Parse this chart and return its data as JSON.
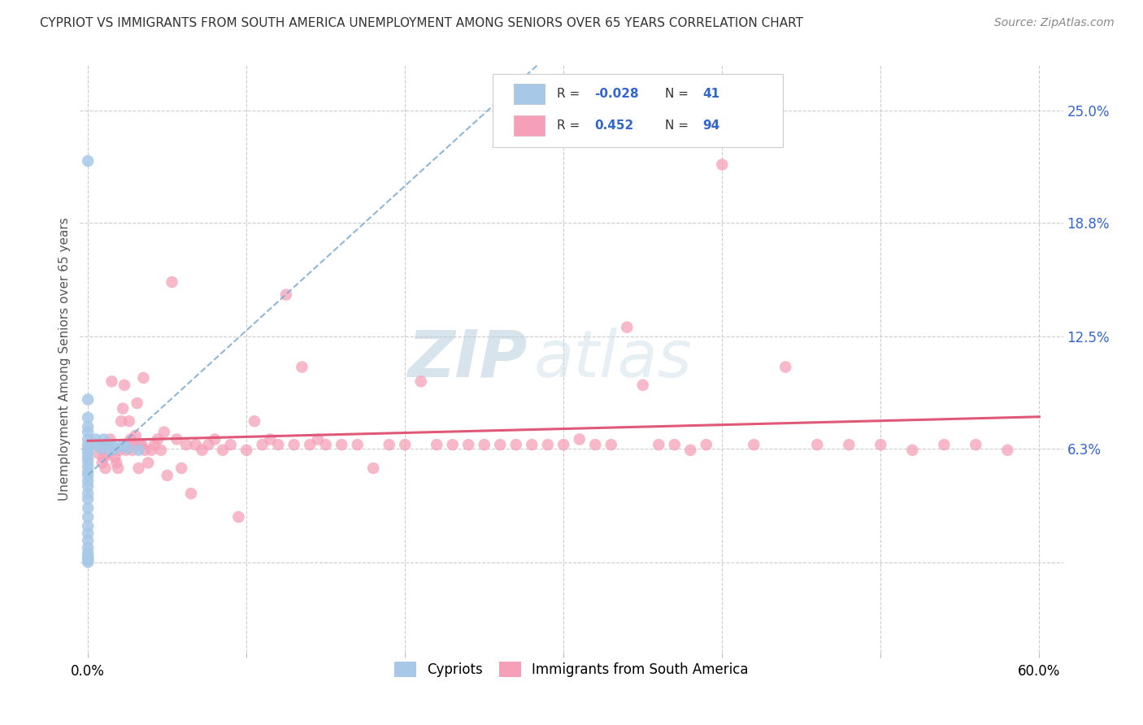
{
  "title": "CYPRIOT VS IMMIGRANTS FROM SOUTH AMERICA UNEMPLOYMENT AMONG SENIORS OVER 65 YEARS CORRELATION CHART",
  "source": "Source: ZipAtlas.com",
  "ylabel": "Unemployment Among Seniors over 65 years",
  "xlim": [
    -0.005,
    0.615
  ],
  "ylim": [
    -0.05,
    0.275
  ],
  "color_cypriot": "#a8c8e8",
  "color_sa": "#f5a0b8",
  "line_color_cypriot": "#7aaad0",
  "line_color_sa": "#e05878",
  "watermark_color": "#ccdde8",
  "background_color": "#ffffff",
  "title_fontsize": 11,
  "axis_fontsize": 12,
  "ylabel_fontsize": 11,
  "r_cyp": -0.028,
  "n_cyp": 41,
  "r_sa": 0.452,
  "n_sa": 94,
  "ytick_vals": [
    0.0,
    0.063,
    0.125,
    0.188,
    0.25
  ],
  "ytick_labels": [
    "",
    "6.3%",
    "12.5%",
    "18.8%",
    "25.0%"
  ],
  "xtick_vals": [
    0.0,
    0.1,
    0.2,
    0.3,
    0.4,
    0.5,
    0.6
  ],
  "xtick_labels": [
    "0.0%",
    "",
    "",
    "",
    "",
    "",
    "60.0%"
  ],
  "cypriot_x": [
    0.0,
    0.0,
    0.0,
    0.0,
    0.0,
    0.0,
    0.0,
    0.0,
    0.0,
    0.0,
    0.0,
    0.0,
    0.0,
    0.0,
    0.0,
    0.0,
    0.0,
    0.0,
    0.0,
    0.0,
    0.0,
    0.0,
    0.0,
    0.0,
    0.0,
    0.0,
    0.0,
    0.0,
    0.0,
    0.0,
    0.005,
    0.006,
    0.008,
    0.01,
    0.012,
    0.014,
    0.015,
    0.018,
    0.022,
    0.025,
    0.032
  ],
  "cypriot_y": [
    0.222,
    0.09,
    0.08,
    0.075,
    0.072,
    0.068,
    0.065,
    0.063,
    0.062,
    0.06,
    0.058,
    0.056,
    0.053,
    0.05,
    0.048,
    0.045,
    0.042,
    0.038,
    0.035,
    0.03,
    0.025,
    0.02,
    0.016,
    0.012,
    0.008,
    0.005,
    0.003,
    0.002,
    0.001,
    0.0,
    0.068,
    0.065,
    0.063,
    0.068,
    0.065,
    0.062,
    0.065,
    0.063,
    0.065,
    0.063,
    0.062
  ],
  "sa_x": [
    0.005,
    0.007,
    0.009,
    0.01,
    0.011,
    0.012,
    0.013,
    0.014,
    0.015,
    0.016,
    0.017,
    0.018,
    0.019,
    0.02,
    0.021,
    0.022,
    0.023,
    0.024,
    0.025,
    0.026,
    0.027,
    0.028,
    0.029,
    0.03,
    0.031,
    0.032,
    0.033,
    0.034,
    0.035,
    0.036,
    0.038,
    0.04,
    0.042,
    0.044,
    0.046,
    0.048,
    0.05,
    0.053,
    0.056,
    0.059,
    0.062,
    0.065,
    0.068,
    0.072,
    0.076,
    0.08,
    0.085,
    0.09,
    0.095,
    0.1,
    0.105,
    0.11,
    0.115,
    0.12,
    0.125,
    0.13,
    0.135,
    0.14,
    0.145,
    0.15,
    0.16,
    0.17,
    0.18,
    0.19,
    0.2,
    0.21,
    0.22,
    0.23,
    0.24,
    0.25,
    0.26,
    0.27,
    0.28,
    0.29,
    0.3,
    0.31,
    0.32,
    0.33,
    0.34,
    0.35,
    0.36,
    0.37,
    0.38,
    0.39,
    0.4,
    0.42,
    0.44,
    0.46,
    0.48,
    0.5,
    0.52,
    0.54,
    0.56,
    0.58
  ],
  "sa_y": [
    0.065,
    0.06,
    0.055,
    0.058,
    0.052,
    0.065,
    0.06,
    0.068,
    0.1,
    0.062,
    0.058,
    0.055,
    0.052,
    0.062,
    0.078,
    0.085,
    0.098,
    0.062,
    0.065,
    0.078,
    0.068,
    0.062,
    0.065,
    0.07,
    0.088,
    0.052,
    0.065,
    0.065,
    0.102,
    0.062,
    0.055,
    0.062,
    0.065,
    0.068,
    0.062,
    0.072,
    0.048,
    0.155,
    0.068,
    0.052,
    0.065,
    0.038,
    0.065,
    0.062,
    0.065,
    0.068,
    0.062,
    0.065,
    0.025,
    0.062,
    0.078,
    0.065,
    0.068,
    0.065,
    0.148,
    0.065,
    0.108,
    0.065,
    0.068,
    0.065,
    0.065,
    0.065,
    0.052,
    0.065,
    0.065,
    0.1,
    0.065,
    0.065,
    0.065,
    0.065,
    0.065,
    0.065,
    0.065,
    0.065,
    0.065,
    0.068,
    0.065,
    0.065,
    0.13,
    0.098,
    0.065,
    0.065,
    0.062,
    0.065,
    0.22,
    0.065,
    0.108,
    0.065,
    0.065,
    0.065,
    0.062,
    0.065,
    0.065,
    0.062
  ]
}
